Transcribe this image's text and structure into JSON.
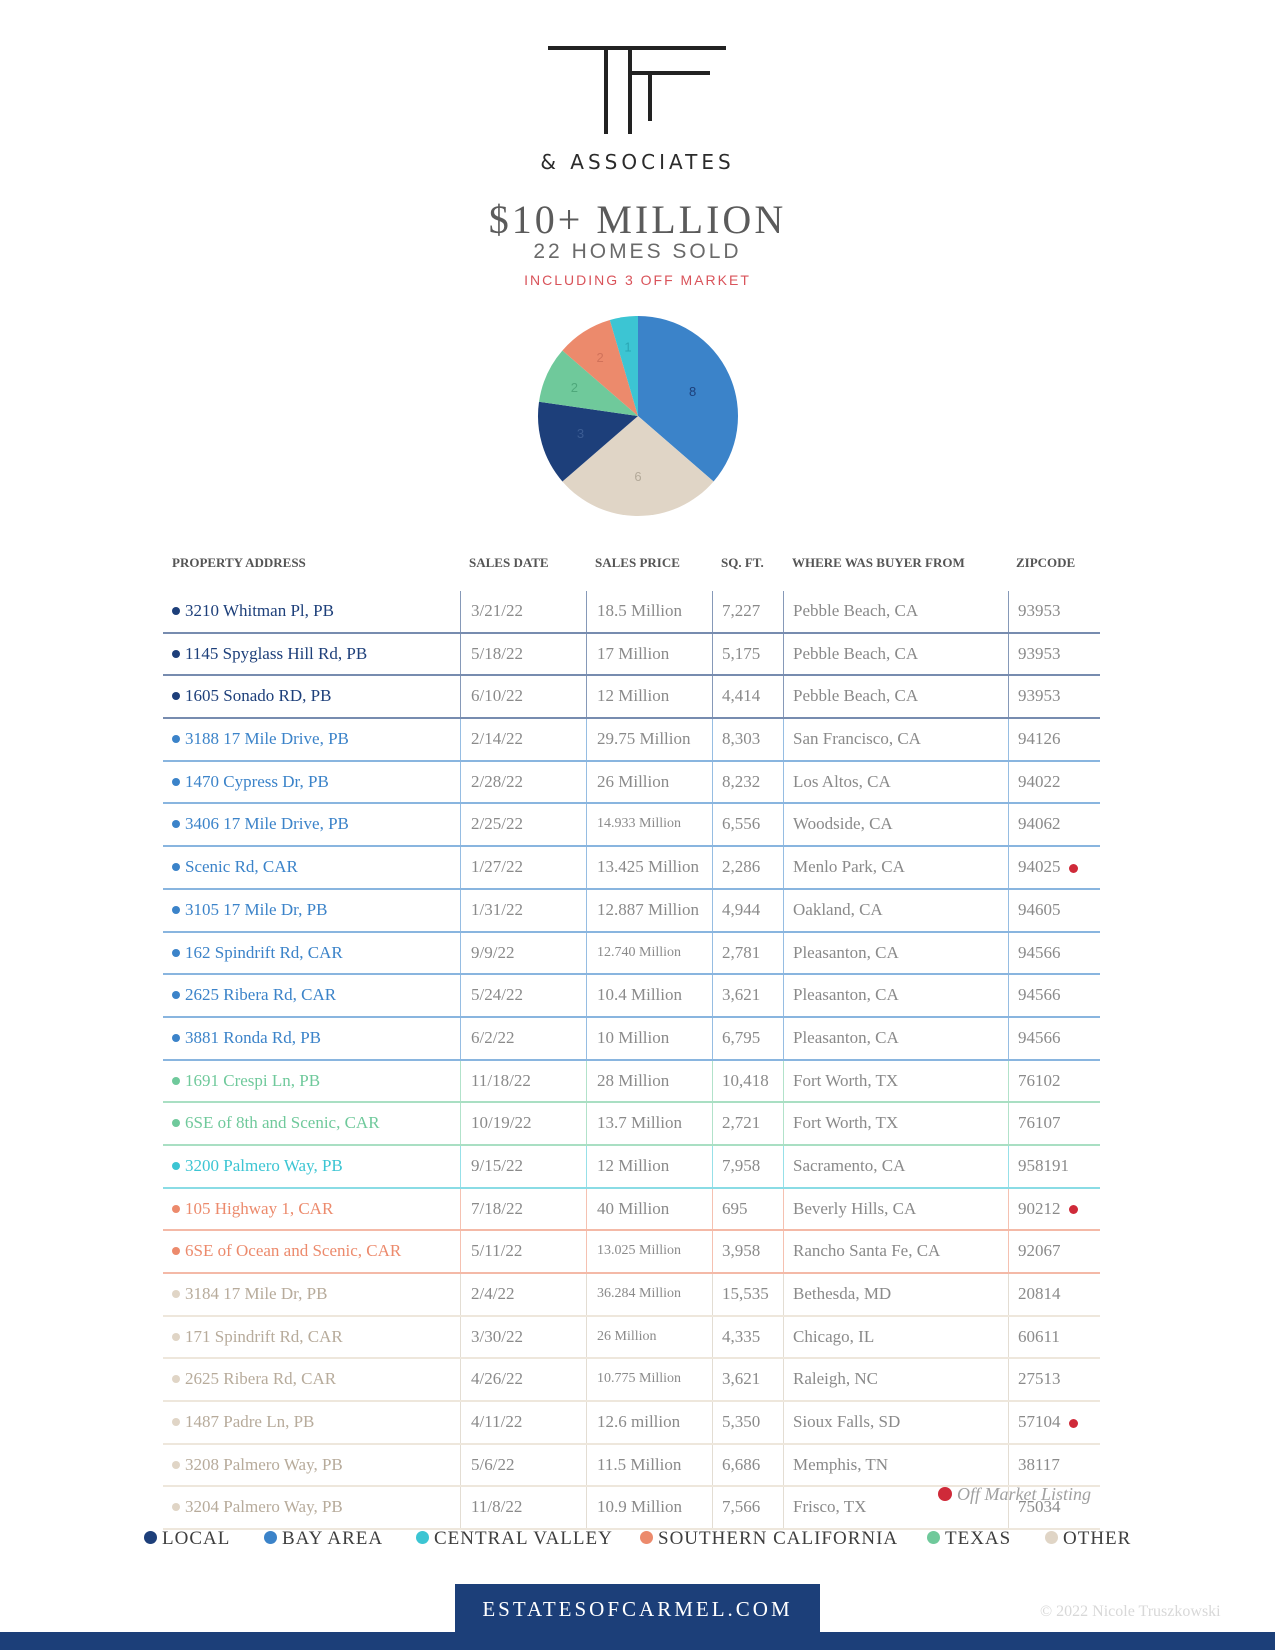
{
  "brand": {
    "logo_letters": "TF",
    "logo_sub": "& ASSOCIATES"
  },
  "header": {
    "title": "$10+ MILLION",
    "subtitle": "22 HOMES SOLD",
    "note": "INCLUDING 3 OFF MARKET"
  },
  "colors": {
    "local": "#1d3f7a",
    "bay_area": "#3b83c9",
    "central_valley": "#3cc5d3",
    "southern_california": "#ec8a6c",
    "texas": "#6fc99b",
    "other": "#e0d5c6",
    "off_market": "#cf2a39"
  },
  "chart_data": {
    "type": "pie",
    "slices": [
      {
        "label": "8",
        "value": 8,
        "group": "bay_area",
        "color": "#3b83c9",
        "label_color": "#1d3f7a"
      },
      {
        "label": "6",
        "value": 6,
        "group": "other",
        "color": "#e0d5c6",
        "label_color": "#b3a999"
      },
      {
        "label": "3",
        "value": 3,
        "group": "local",
        "color": "#1d3f7a",
        "label_color": "#3b5c93"
      },
      {
        "label": "2",
        "value": 2,
        "group": "texas",
        "color": "#6fc99b",
        "label_color": "#4ea87b"
      },
      {
        "label": "2",
        "value": 2,
        "group": "southern_california",
        "color": "#ec8a6c",
        "label_color": "#d1725a"
      },
      {
        "label": "1",
        "value": 1,
        "group": "central_valley",
        "color": "#3cc5d3",
        "label_color": "#2aa7b4"
      }
    ]
  },
  "table": {
    "headers": {
      "address": "PROPERTY ADDRESS",
      "date": "SALES DATE",
      "price": "SALES PRICE",
      "sqft": "SQ. FT.",
      "buyer": "WHERE WAS BUYER FROM",
      "zip": "ZIPCODE"
    },
    "rows": [
      {
        "address": "3210 Whitman Pl, PB",
        "date": "3/21/22",
        "price": "18.5 Million",
        "sqft": "7,227",
        "buyer": "Pebble Beach, CA",
        "zip": "93953",
        "group": "local",
        "off_market": false,
        "small_price": false
      },
      {
        "address": "1145 Spyglass Hill Rd, PB",
        "date": "5/18/22",
        "price": "17 Million",
        "sqft": "5,175",
        "buyer": "Pebble Beach, CA",
        "zip": "93953",
        "group": "local",
        "off_market": false,
        "small_price": false
      },
      {
        "address": "1605 Sonado RD, PB",
        "date": "6/10/22",
        "price": "12 Million",
        "sqft": "4,414",
        "buyer": "Pebble Beach, CA",
        "zip": "93953",
        "group": "local",
        "off_market": false,
        "small_price": false
      },
      {
        "address": "3188 17 Mile Drive, PB",
        "date": "2/14/22",
        "price": "29.75 Million",
        "sqft": "8,303",
        "buyer": "San Francisco, CA",
        "zip": "94126",
        "group": "bay_area",
        "off_market": false,
        "small_price": false
      },
      {
        "address": "1470 Cypress Dr, PB",
        "date": "2/28/22",
        "price": "26 Million",
        "sqft": "8,232",
        "buyer": "Los Altos, CA",
        "zip": "94022",
        "group": "bay_area",
        "off_market": false,
        "small_price": false
      },
      {
        "address": "3406 17 Mile Drive, PB",
        "date": "2/25/22",
        "price": "14.933 Million",
        "sqft": "6,556",
        "buyer": "Woodside, CA",
        "zip": "94062",
        "group": "bay_area",
        "off_market": false,
        "small_price": true
      },
      {
        "address": "Scenic Rd, CAR",
        "date": "1/27/22",
        "price": "13.425 Million",
        "sqft": "2,286",
        "buyer": "Menlo Park, CA",
        "zip": "94025",
        "group": "bay_area",
        "off_market": true,
        "small_price": false
      },
      {
        "address": "3105 17 Mile Dr, PB",
        "date": "1/31/22",
        "price": "12.887 Million",
        "sqft": "4,944",
        "buyer": "Oakland, CA",
        "zip": "94605",
        "group": "bay_area",
        "off_market": false,
        "small_price": false
      },
      {
        "address": "162 Spindrift Rd, CAR",
        "date": "9/9/22",
        "price": "12.740 Million",
        "sqft": "2,781",
        "buyer": "Pleasanton, CA",
        "zip": "94566",
        "group": "bay_area",
        "off_market": false,
        "small_price": true
      },
      {
        "address": "2625 Ribera Rd, CAR",
        "date": "5/24/22",
        "price": "10.4 Million",
        "sqft": "3,621",
        "buyer": "Pleasanton, CA",
        "zip": "94566",
        "group": "bay_area",
        "off_market": false,
        "small_price": false
      },
      {
        "address": "3881 Ronda Rd, PB",
        "date": "6/2/22",
        "price": "10 Million",
        "sqft": "6,795",
        "buyer": "Pleasanton, CA",
        "zip": "94566",
        "group": "bay_area",
        "off_market": false,
        "small_price": false
      },
      {
        "address": "1691 Crespi Ln, PB",
        "date": "11/18/22",
        "price": "28 Million",
        "sqft": "10,418",
        "buyer": "Fort Worth, TX",
        "zip": "76102",
        "group": "texas",
        "off_market": false,
        "small_price": false
      },
      {
        "address": "6SE of 8th and Scenic, CAR",
        "date": "10/19/22",
        "price": "13.7 Million",
        "sqft": "2,721",
        "buyer": "Fort Worth, TX",
        "zip": "76107",
        "group": "texas",
        "off_market": false,
        "small_price": false
      },
      {
        "address": "3200 Palmero Way, PB",
        "date": "9/15/22",
        "price": "12 Million",
        "sqft": "7,958",
        "buyer": "Sacramento, CA",
        "zip": "958191",
        "group": "central_valley",
        "off_market": false,
        "small_price": false
      },
      {
        "address": "105 Highway 1, CAR",
        "date": "7/18/22",
        "price": "40 Million",
        "sqft": "695",
        "buyer": "Beverly Hills, CA",
        "zip": "90212",
        "group": "southern_california",
        "off_market": true,
        "small_price": false
      },
      {
        "address": "6SE of Ocean and Scenic, CAR",
        "date": "5/11/22",
        "price": "13.025 Million",
        "sqft": "3,958",
        "buyer": "Rancho Santa Fe, CA",
        "zip": "92067",
        "group": "southern_california",
        "off_market": false,
        "small_price": true
      },
      {
        "address": "3184 17 Mile Dr, PB",
        "date": "2/4/22",
        "price": "36.284 Million",
        "sqft": "15,535",
        "buyer": "Bethesda, MD",
        "zip": "20814",
        "group": "other",
        "off_market": false,
        "small_price": true
      },
      {
        "address": "171 Spindrift Rd, CAR",
        "date": "3/30/22",
        "price": "26 Million",
        "sqft": "4,335",
        "buyer": "Chicago, IL",
        "zip": "60611",
        "group": "other",
        "off_market": false,
        "small_price": true
      },
      {
        "address": "2625 Ribera Rd, CAR",
        "date": "4/26/22",
        "price": "10.775 Million",
        "sqft": "3,621",
        "buyer": "Raleigh, NC",
        "zip": "27513",
        "group": "other",
        "off_market": false,
        "small_price": true
      },
      {
        "address": "1487 Padre Ln, PB",
        "date": "4/11/22",
        "price": "12.6 million",
        "sqft": "5,350",
        "buyer": "Sioux Falls, SD",
        "zip": "57104",
        "group": "other",
        "off_market": true,
        "small_price": false
      },
      {
        "address": "3208 Palmero Way, PB",
        "date": "5/6/22",
        "price": "11.5 Million",
        "sqft": "6,686",
        "buyer": "Memphis, TN",
        "zip": "38117",
        "group": "other",
        "off_market": false,
        "small_price": false
      },
      {
        "address": "3204 Palmero Way, PB",
        "date": "11/8/22",
        "price": "10.9 Million",
        "sqft": "7,566",
        "buyer": "Frisco, TX",
        "zip": "75034",
        "group": "other",
        "off_market": false,
        "small_price": false
      }
    ]
  },
  "off_market_label": "Off Market Listing",
  "legend": [
    {
      "label": "LOCAL",
      "group": "local"
    },
    {
      "label": "BAY AREA",
      "group": "bay_area"
    },
    {
      "label": "CENTRAL VALLEY",
      "group": "central_valley"
    },
    {
      "label": "SOUTHERN CALIFORNIA",
      "group": "southern_california"
    },
    {
      "label": "TEXAS",
      "group": "texas"
    },
    {
      "label": "OTHER",
      "group": "other"
    }
  ],
  "footer": {
    "website": "ESTATESOFCARMEL.COM",
    "copyright": "© 2022 Nicole Truszkowski"
  }
}
